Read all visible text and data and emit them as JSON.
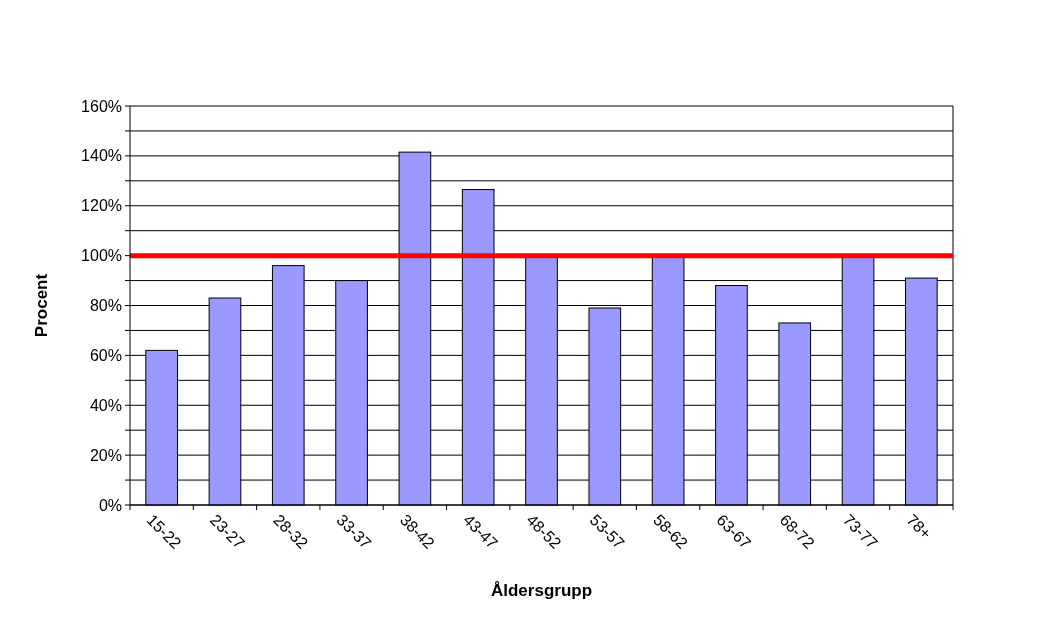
{
  "chart_data": {
    "type": "bar",
    "xlabel": "Åldersgrupp",
    "ylabel": "Procent",
    "categories": [
      "15-22",
      "23-27",
      "28-32",
      "33-37",
      "38-42",
      "43-47",
      "48-52",
      "53-57",
      "58-62",
      "63-67",
      "68-72",
      "73-77",
      "78+"
    ],
    "values": [
      62,
      83,
      96,
      90,
      141.5,
      126.5,
      100,
      79,
      100,
      88,
      73,
      100,
      91
    ],
    "color": "#9999ff",
    "ylim": [
      0,
      160
    ],
    "yticks": [
      {
        "value": 0,
        "label": "0%"
      },
      {
        "value": 10,
        "label": null
      },
      {
        "value": 20,
        "label": "20%"
      },
      {
        "value": 30,
        "label": null
      },
      {
        "value": 40,
        "label": "40%"
      },
      {
        "value": 50,
        "label": null
      },
      {
        "value": 60,
        "label": "60%"
      },
      {
        "value": 70,
        "label": null
      },
      {
        "value": 80,
        "label": "80%"
      },
      {
        "value": 90,
        "label": null
      },
      {
        "value": 100,
        "label": "100%"
      },
      {
        "value": 110,
        "label": null
      },
      {
        "value": 120,
        "label": "120%"
      },
      {
        "value": 130,
        "label": null
      },
      {
        "value": 140,
        "label": "140%"
      },
      {
        "value": 150,
        "label": null
      },
      {
        "value": 160,
        "label": "160%"
      }
    ],
    "grid": "y",
    "ref_lines": [
      {
        "axis": "y",
        "value": 100,
        "color": "#ff0000"
      }
    ]
  }
}
